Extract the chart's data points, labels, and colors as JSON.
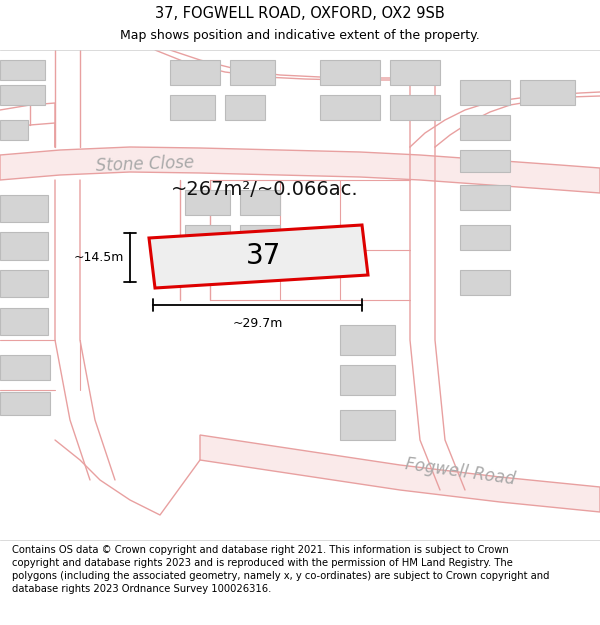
{
  "title": "37, FOGWELL ROAD, OXFORD, OX2 9SB",
  "subtitle": "Map shows position and indicative extent of the property.",
  "footer": "Contains OS data © Crown copyright and database right 2021. This information is subject to Crown copyright and database rights 2023 and is reproduced with the permission of HM Land Registry. The polygons (including the associated geometry, namely x, y co-ordinates) are subject to Crown copyright and database rights 2023 Ordnance Survey 100026316.",
  "street_label_stone": "Stone Close",
  "street_label_fogwell": "Fogwell Road",
  "area_label": "~267m²/~0.066ac.",
  "number_label": "37",
  "dim_width": "~29.7m",
  "dim_height": "~14.5m",
  "title_fontsize": 10.5,
  "subtitle_fontsize": 9,
  "footer_fontsize": 7.2,
  "road_pink": "#e8a0a0",
  "road_fill": "#faeaea",
  "building_fill": "#d4d4d4",
  "building_edge": "#bbbbbb",
  "bg_color": "#f7f7f7",
  "highlight_red": "#dd0000",
  "highlight_fill": "#eeeeee",
  "dim_color": "#111111",
  "label_gray": "#aaaaaa",
  "text_black": "#111111"
}
